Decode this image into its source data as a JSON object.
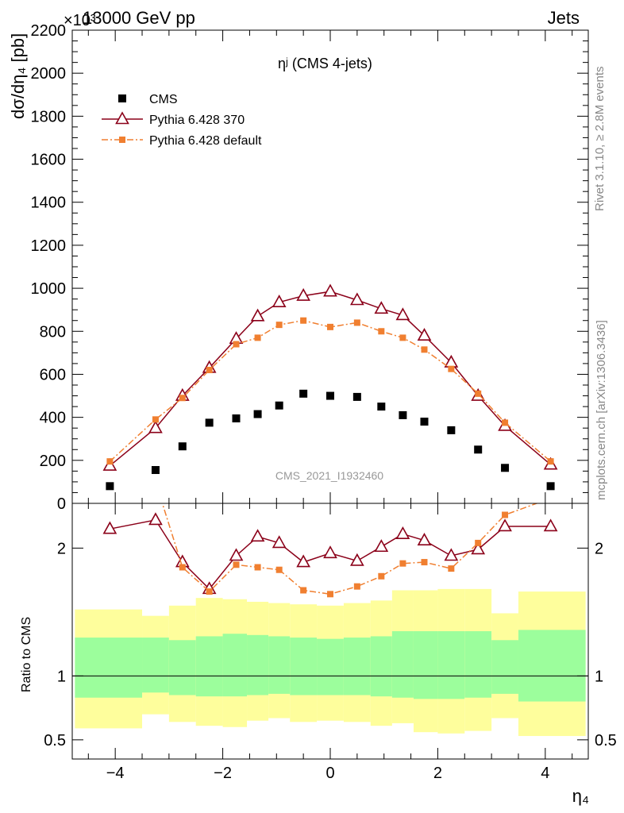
{
  "header": {
    "left": "13000 GeV pp",
    "right": "Jets",
    "exponent": "×10³"
  },
  "side_labels": {
    "rivet": "Rivet 3.1.10, ≥ 2.8M events",
    "mcplots": "mcplots.cern.ch [arXiv:1306.3436]"
  },
  "chart_data": [
    {
      "type": "scatter",
      "title": "ηʲ (CMS 4-jets)",
      "ylabel": "dσ/dη₄ [pb]",
      "xlabel": "η₄",
      "xlim": [
        -4.8,
        4.8
      ],
      "ylim": [
        0,
        2200
      ],
      "y_exponent_label": "×10³",
      "xticks": [
        -4,
        -2,
        0,
        2,
        4
      ],
      "yticks": [
        0,
        200,
        400,
        600,
        800,
        1000,
        1200,
        1400,
        1600,
        1800,
        2000,
        2200
      ],
      "watermark": "CMS_2021_I1932460",
      "legend_position": "top-left",
      "series": [
        {
          "name": "CMS",
          "color": "#000000",
          "style": "square-marker",
          "x": [
            -4.1,
            -3.25,
            -2.75,
            -2.25,
            -1.75,
            -1.35,
            -0.95,
            -0.5,
            0.0,
            0.5,
            0.95,
            1.35,
            1.75,
            2.25,
            2.75,
            3.25,
            4.1
          ],
          "y": [
            80,
            155,
            265,
            375,
            395,
            415,
            455,
            510,
            500,
            495,
            450,
            410,
            380,
            340,
            250,
            165,
            80
          ]
        },
        {
          "name": "Pythia 6.428 370",
          "color": "#8b0019",
          "style": "line-open-triangle",
          "x": [
            -4.1,
            -3.25,
            -2.75,
            -2.25,
            -1.75,
            -1.35,
            -0.95,
            -0.5,
            0.0,
            0.5,
            0.95,
            1.35,
            1.75,
            2.25,
            2.75,
            3.25,
            4.1
          ],
          "y": [
            175,
            350,
            500,
            630,
            765,
            870,
            935,
            965,
            985,
            945,
            905,
            875,
            780,
            655,
            500,
            360,
            180
          ]
        },
        {
          "name": "Pythia 6.428 default",
          "color": "#f07f30",
          "style": "dashdot-filled-square",
          "x": [
            -4.1,
            -3.25,
            -2.75,
            -2.25,
            -1.75,
            -1.35,
            -0.95,
            -0.5,
            0.0,
            0.5,
            0.95,
            1.35,
            1.75,
            2.25,
            2.75,
            3.25,
            4.1
          ],
          "y": [
            195,
            390,
            490,
            620,
            740,
            770,
            830,
            850,
            820,
            840,
            800,
            770,
            715,
            625,
            510,
            375,
            195
          ]
        }
      ]
    },
    {
      "type": "line",
      "ylabel": "Ratio to CMS",
      "xlabel": "η₄",
      "xlim": [
        -4.8,
        4.8
      ],
      "ylim": [
        0.35,
        2.35
      ],
      "yticks": [
        0.5,
        1,
        2
      ],
      "xticks": [
        -4,
        -2,
        0,
        2,
        4
      ],
      "reference_line": 1,
      "band_colors": {
        "inner": "#9cfe9c",
        "outer": "#fefe9c"
      },
      "bands": {
        "x_edges": [
          -4.75,
          -3.5,
          -3.0,
          -2.5,
          -2.0,
          -1.55,
          -1.15,
          -0.75,
          -0.25,
          0.25,
          0.75,
          1.15,
          1.55,
          2.0,
          2.5,
          3.0,
          3.5,
          4.75
        ],
        "inner_low": [
          0.83,
          0.87,
          0.85,
          0.84,
          0.84,
          0.85,
          0.86,
          0.85,
          0.85,
          0.85,
          0.84,
          0.83,
          0.82,
          0.82,
          0.83,
          0.86,
          0.8
        ],
        "inner_high": [
          1.3,
          1.3,
          1.28,
          1.31,
          1.33,
          1.32,
          1.31,
          1.3,
          1.29,
          1.3,
          1.31,
          1.35,
          1.35,
          1.35,
          1.35,
          1.28,
          1.36
        ],
        "outer_low": [
          0.59,
          0.7,
          0.64,
          0.61,
          0.6,
          0.65,
          0.67,
          0.64,
          0.65,
          0.64,
          0.61,
          0.63,
          0.56,
          0.55,
          0.57,
          0.67,
          0.53
        ],
        "outer_high": [
          1.52,
          1.47,
          1.55,
          1.61,
          1.6,
          1.58,
          1.57,
          1.56,
          1.55,
          1.57,
          1.59,
          1.67,
          1.67,
          1.68,
          1.68,
          1.49,
          1.66
        ]
      },
      "series": [
        {
          "name": "Pythia 6.428 370",
          "color": "#8b0019",
          "style": "line-open-triangle",
          "x": [
            -4.1,
            -3.25,
            -2.75,
            -2.25,
            -1.75,
            -1.35,
            -0.95,
            -0.5,
            0.0,
            0.5,
            0.95,
            1.35,
            1.75,
            2.25,
            2.75,
            3.25,
            4.1
          ],
          "y": [
            2.15,
            2.22,
            1.89,
            1.68,
            1.94,
            2.09,
            2.04,
            1.89,
            1.96,
            1.9,
            2.01,
            2.11,
            2.06,
            1.94,
            1.99,
            2.17,
            2.17
          ]
        },
        {
          "name": "Pythia 6.428 default",
          "color": "#f07f30",
          "style": "dashdot-filled-square",
          "x": [
            -4.1,
            -3.25,
            -2.75,
            -2.25,
            -1.75,
            -1.35,
            -0.95,
            -0.5,
            0.0,
            0.5,
            0.95,
            1.35,
            1.75,
            2.25,
            2.75,
            3.25,
            4.1
          ],
          "y": [
            2.44,
            2.52,
            1.85,
            1.66,
            1.87,
            1.85,
            1.83,
            1.67,
            1.64,
            1.7,
            1.78,
            1.88,
            1.89,
            1.84,
            2.04,
            2.26,
            2.39
          ]
        }
      ]
    }
  ]
}
